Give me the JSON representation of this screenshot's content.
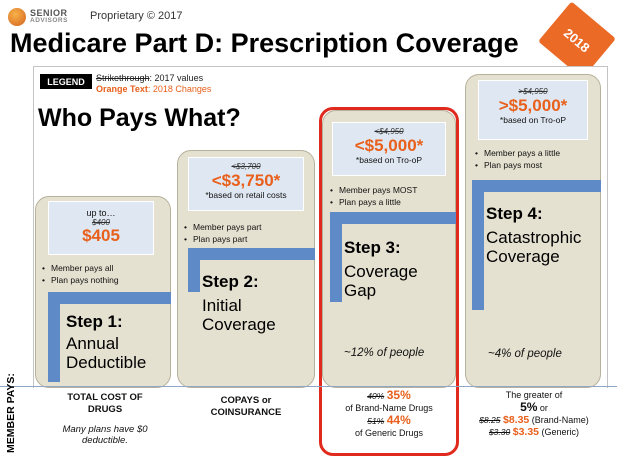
{
  "header": {
    "logo_line1": "SENIOR",
    "logo_line2": "ADVISORS",
    "proprietary": "Proprietary © 2017",
    "title": "Medicare Part D: Prescription Coverage",
    "year_flag": "2018"
  },
  "legend": {
    "label": "LEGEND",
    "strike_word": "Strikethrough",
    "strike_desc": ": 2017 values",
    "orange_word": "Orange Text",
    "orange_desc": ": 2018 Changes"
  },
  "subtitle": "Who Pays What?",
  "steps": [
    {
      "prefix": "up to…",
      "old_value": "$400",
      "new_value": "$405",
      "note": "",
      "bullets": [
        "Member pays all",
        "Plan pays nothing"
      ],
      "step": "Step 1:",
      "name_line1": "Annual",
      "name_line2": "Deductible",
      "share": ""
    },
    {
      "prefix": "",
      "old_value": "<$3,700",
      "new_value": "<$3,750*",
      "note": "*based on retail costs",
      "bullets": [
        "Member pays part",
        "Plan pays part"
      ],
      "step": "Step 2:",
      "name_line1": "Initial",
      "name_line2": "Coverage",
      "share": ""
    },
    {
      "prefix": "",
      "old_value": "<$4,950",
      "new_value": "<$5,000*",
      "note": "*based on Tro-oP",
      "bullets": [
        "Member pays MOST",
        "Plan pays a little"
      ],
      "step": "Step 3:",
      "name_line1": "Coverage",
      "name_line2": "Gap",
      "share": "~12% of people"
    },
    {
      "prefix": "",
      "old_value": ">$4,950",
      "new_value": ">$5,000*",
      "note": "*based on Tro-oP",
      "bullets": [
        "Member pays a little",
        "Plan pays most"
      ],
      "step": "Step 4:",
      "name_line1": "Catastrophic",
      "name_line2": "Coverage",
      "share": "~4% of people"
    }
  ],
  "member_pays": {
    "label": "MEMBER PAYS:",
    "col1_head_line1": "TOTAL COST OF",
    "col1_head_line2": "DRUGS",
    "col1_note_line1": "Many plans have $0",
    "col1_note_line2": "deductible.",
    "col2_head_line1": "COPAYS or",
    "col2_head_line2": "COINSURANCE",
    "col3_old1": "40%",
    "col3_new1": "35%",
    "col3_desc1": "of Brand-Name Drugs",
    "col3_old2": "51%",
    "col3_new2": "44%",
    "col3_desc2": "of Generic Drugs",
    "col4_intro": "The greater of",
    "col4_pct": "5%",
    "col4_or": "or",
    "col4_old1": "$8.25",
    "col4_new1": "$8.35",
    "col4_desc1": "(Brand-Name)",
    "col4_old2": "$3.30",
    "col4_new2": "$3.35",
    "col4_desc2": "(Generic)"
  },
  "colors": {
    "orange": "#e8601c",
    "stair_blue": "#5e8ac8",
    "column_beige": "#e5e1d0",
    "highlight_red": "#e02a1e"
  }
}
